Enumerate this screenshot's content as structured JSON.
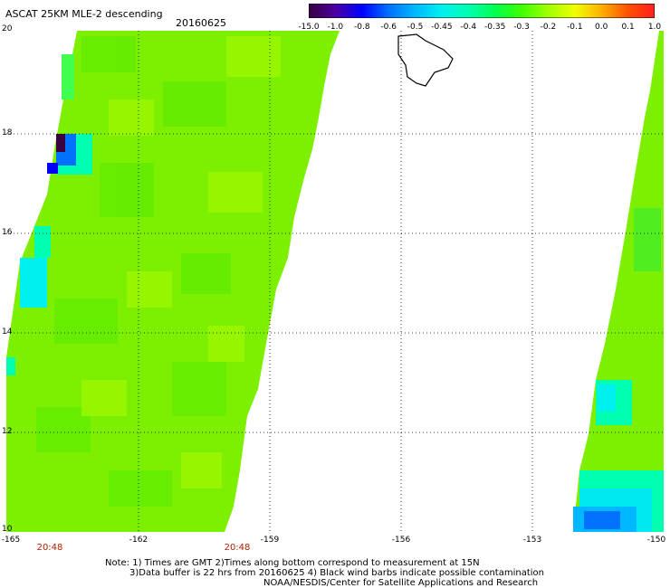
{
  "title": "ASCAT 25KM MLE-2 descending",
  "date": "20160625",
  "colorbar": {
    "labels": [
      "-15.0",
      "-1.0",
      "-0.8",
      "-0.6",
      "-0.5",
      "-0.45",
      "-0.4",
      "-0.35",
      "-0.3",
      "-0.2",
      "-0.1",
      "0.0",
      "0.1",
      "1.0"
    ],
    "colors": [
      "#3a0040",
      "#4b00a0",
      "#0000ff",
      "#0070ff",
      "#00b8ff",
      "#00f0f0",
      "#00ffb0",
      "#00ff50",
      "#40ff00",
      "#a0ff00",
      "#f0ff00",
      "#ffb000",
      "#ff5000",
      "#ff2020"
    ]
  },
  "lat_labels": [
    "20",
    "18",
    "16",
    "14",
    "12",
    "10"
  ],
  "lon_labels": [
    "-165",
    "-162",
    "-159",
    "-156",
    "-153",
    "-150"
  ],
  "time_labels": [
    "20:48",
    "20:48"
  ],
  "notes": [
    "Note: 1) Times are GMT 2)Times along bottom correspond to measurement at 15N",
    "3)Data buffer is 22 hrs from 20160625 4) Black wind barbs indicate possible contamination",
    "NOAA/NESDIS/Center for Satellite Applications and Research"
  ]
}
